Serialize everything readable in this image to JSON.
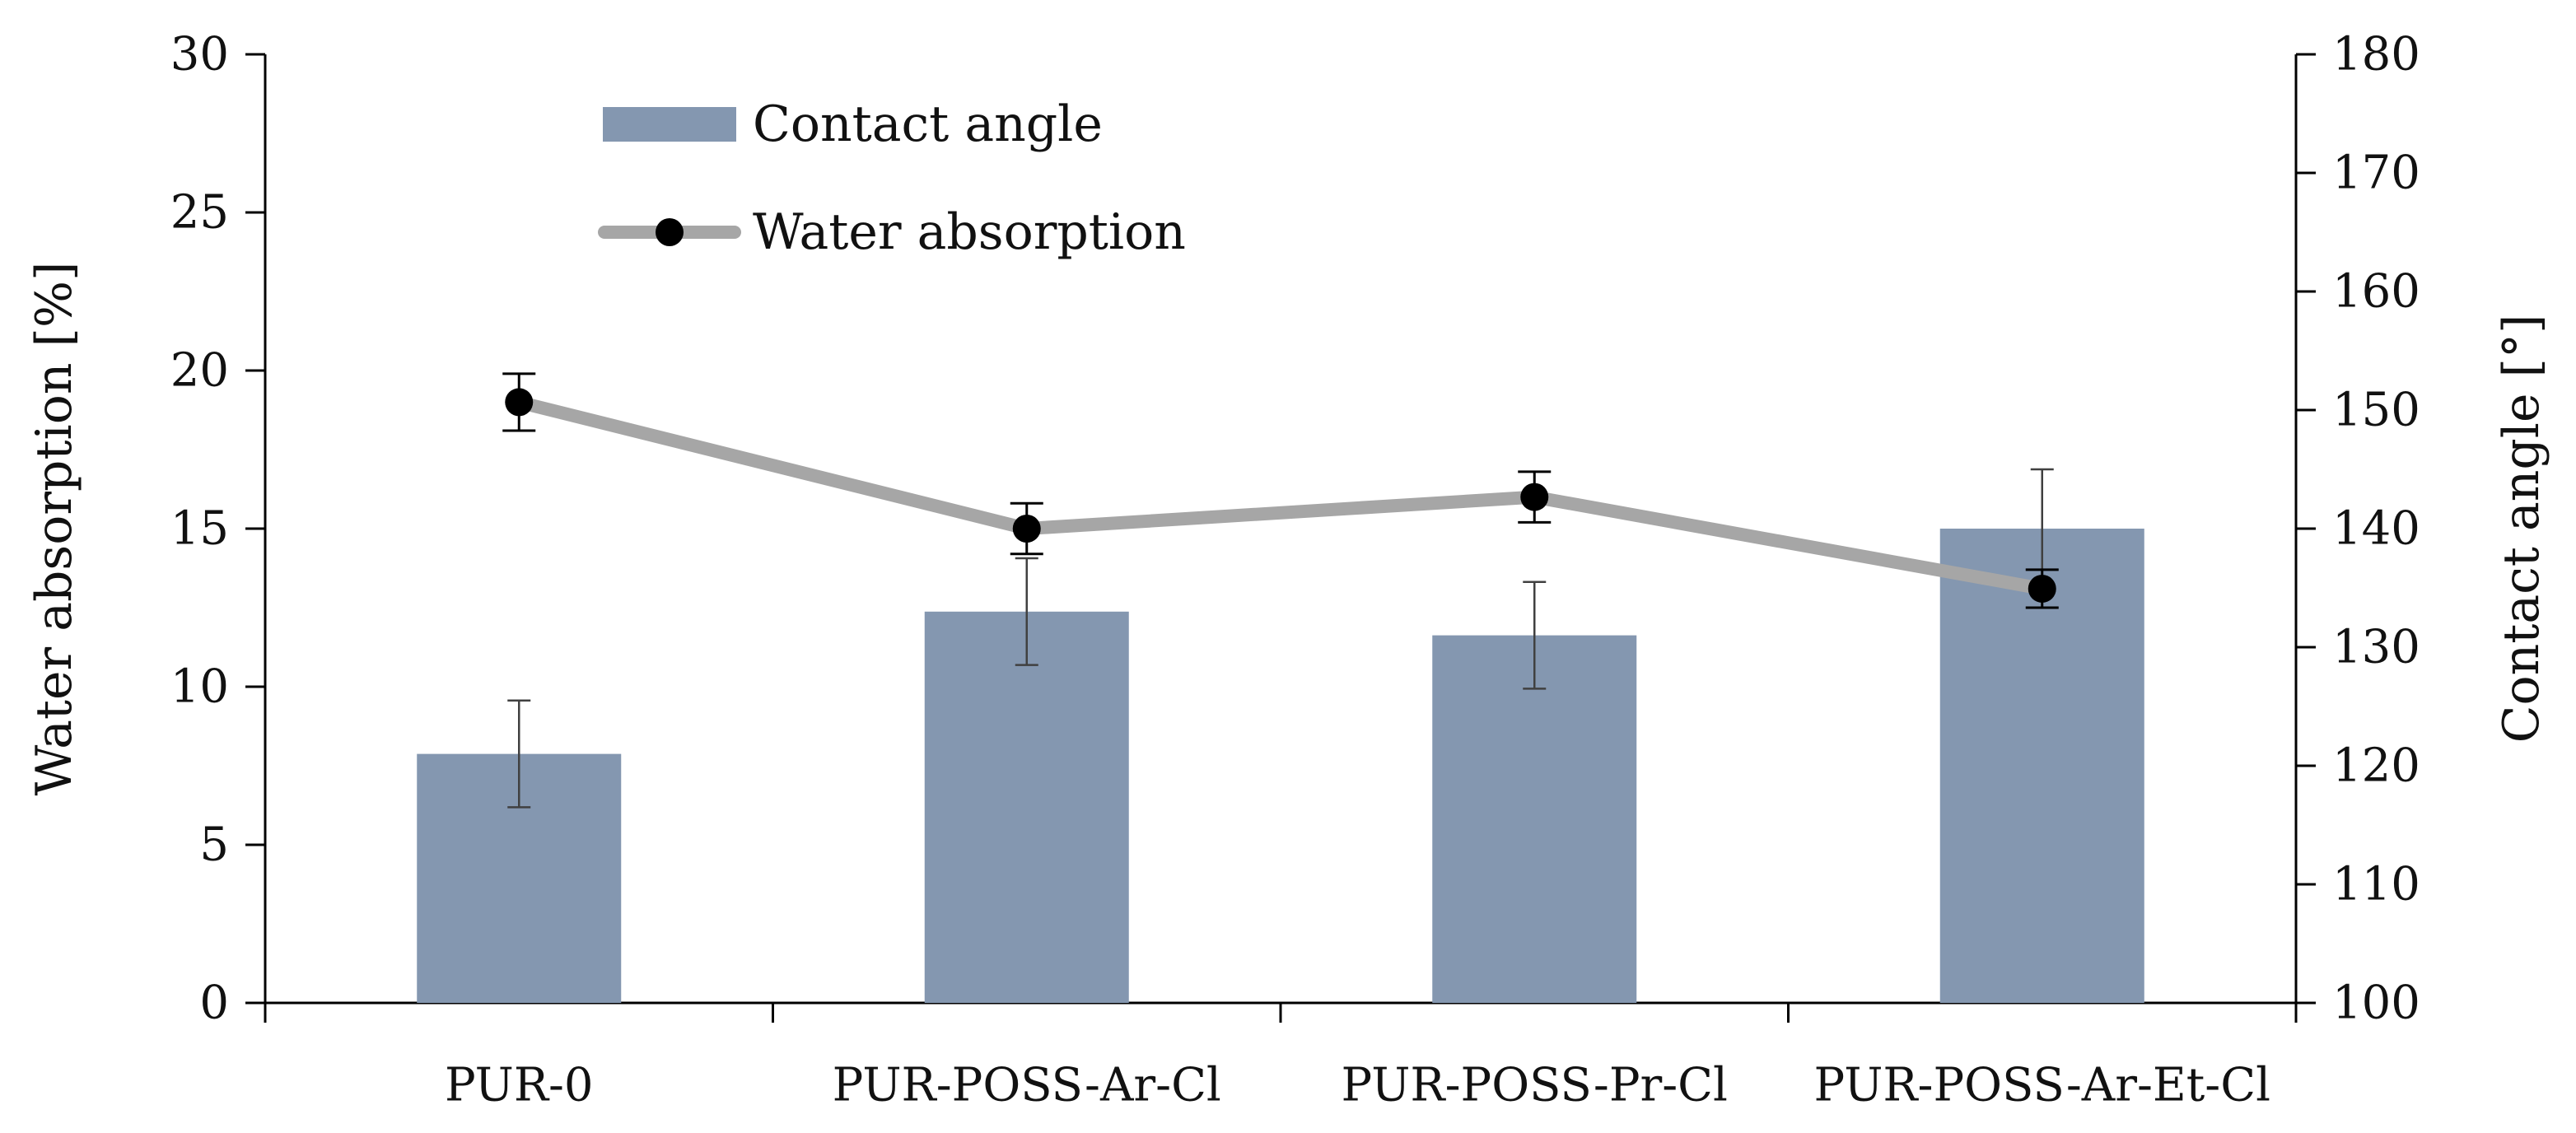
{
  "chart_data": {
    "type": "bar",
    "title": "",
    "categories": [
      "PUR-0",
      "PUR-POSS-Ar-Cl",
      "PUR-POSS-Pr-Cl",
      "PUR-POSS-Ar-Et-Cl"
    ],
    "series": [
      {
        "name": "Contact angle",
        "type": "bar",
        "axis": "right",
        "values": [
          121,
          133,
          131,
          140
        ],
        "errors": [
          4.5,
          4.5,
          4.5,
          5.0
        ]
      },
      {
        "name": "Water absorption",
        "type": "line",
        "axis": "left",
        "values": [
          19.0,
          15.0,
          16.0,
          13.1
        ],
        "errors": [
          0.9,
          0.8,
          0.8,
          0.6
        ]
      }
    ],
    "left_axis": {
      "label": "Water absorption [%]",
      "ylim": [
        0,
        30
      ],
      "ticks": [
        "0",
        "5",
        "10",
        "15",
        "20",
        "25",
        "30"
      ]
    },
    "right_axis": {
      "label": "Contact angle [°]",
      "ylim": [
        100,
        180
      ],
      "ticks": [
        "100",
        "110",
        "120",
        "130",
        "140",
        "150",
        "160",
        "170",
        "180"
      ]
    },
    "legend": {
      "position": "top-left",
      "entries": [
        "Contact angle",
        "Water absorption"
      ]
    },
    "colors": {
      "bar": "#8497b0",
      "line": "#a6a6a6",
      "marker": "#000000",
      "error": "#404040",
      "axis": "#000000"
    }
  }
}
